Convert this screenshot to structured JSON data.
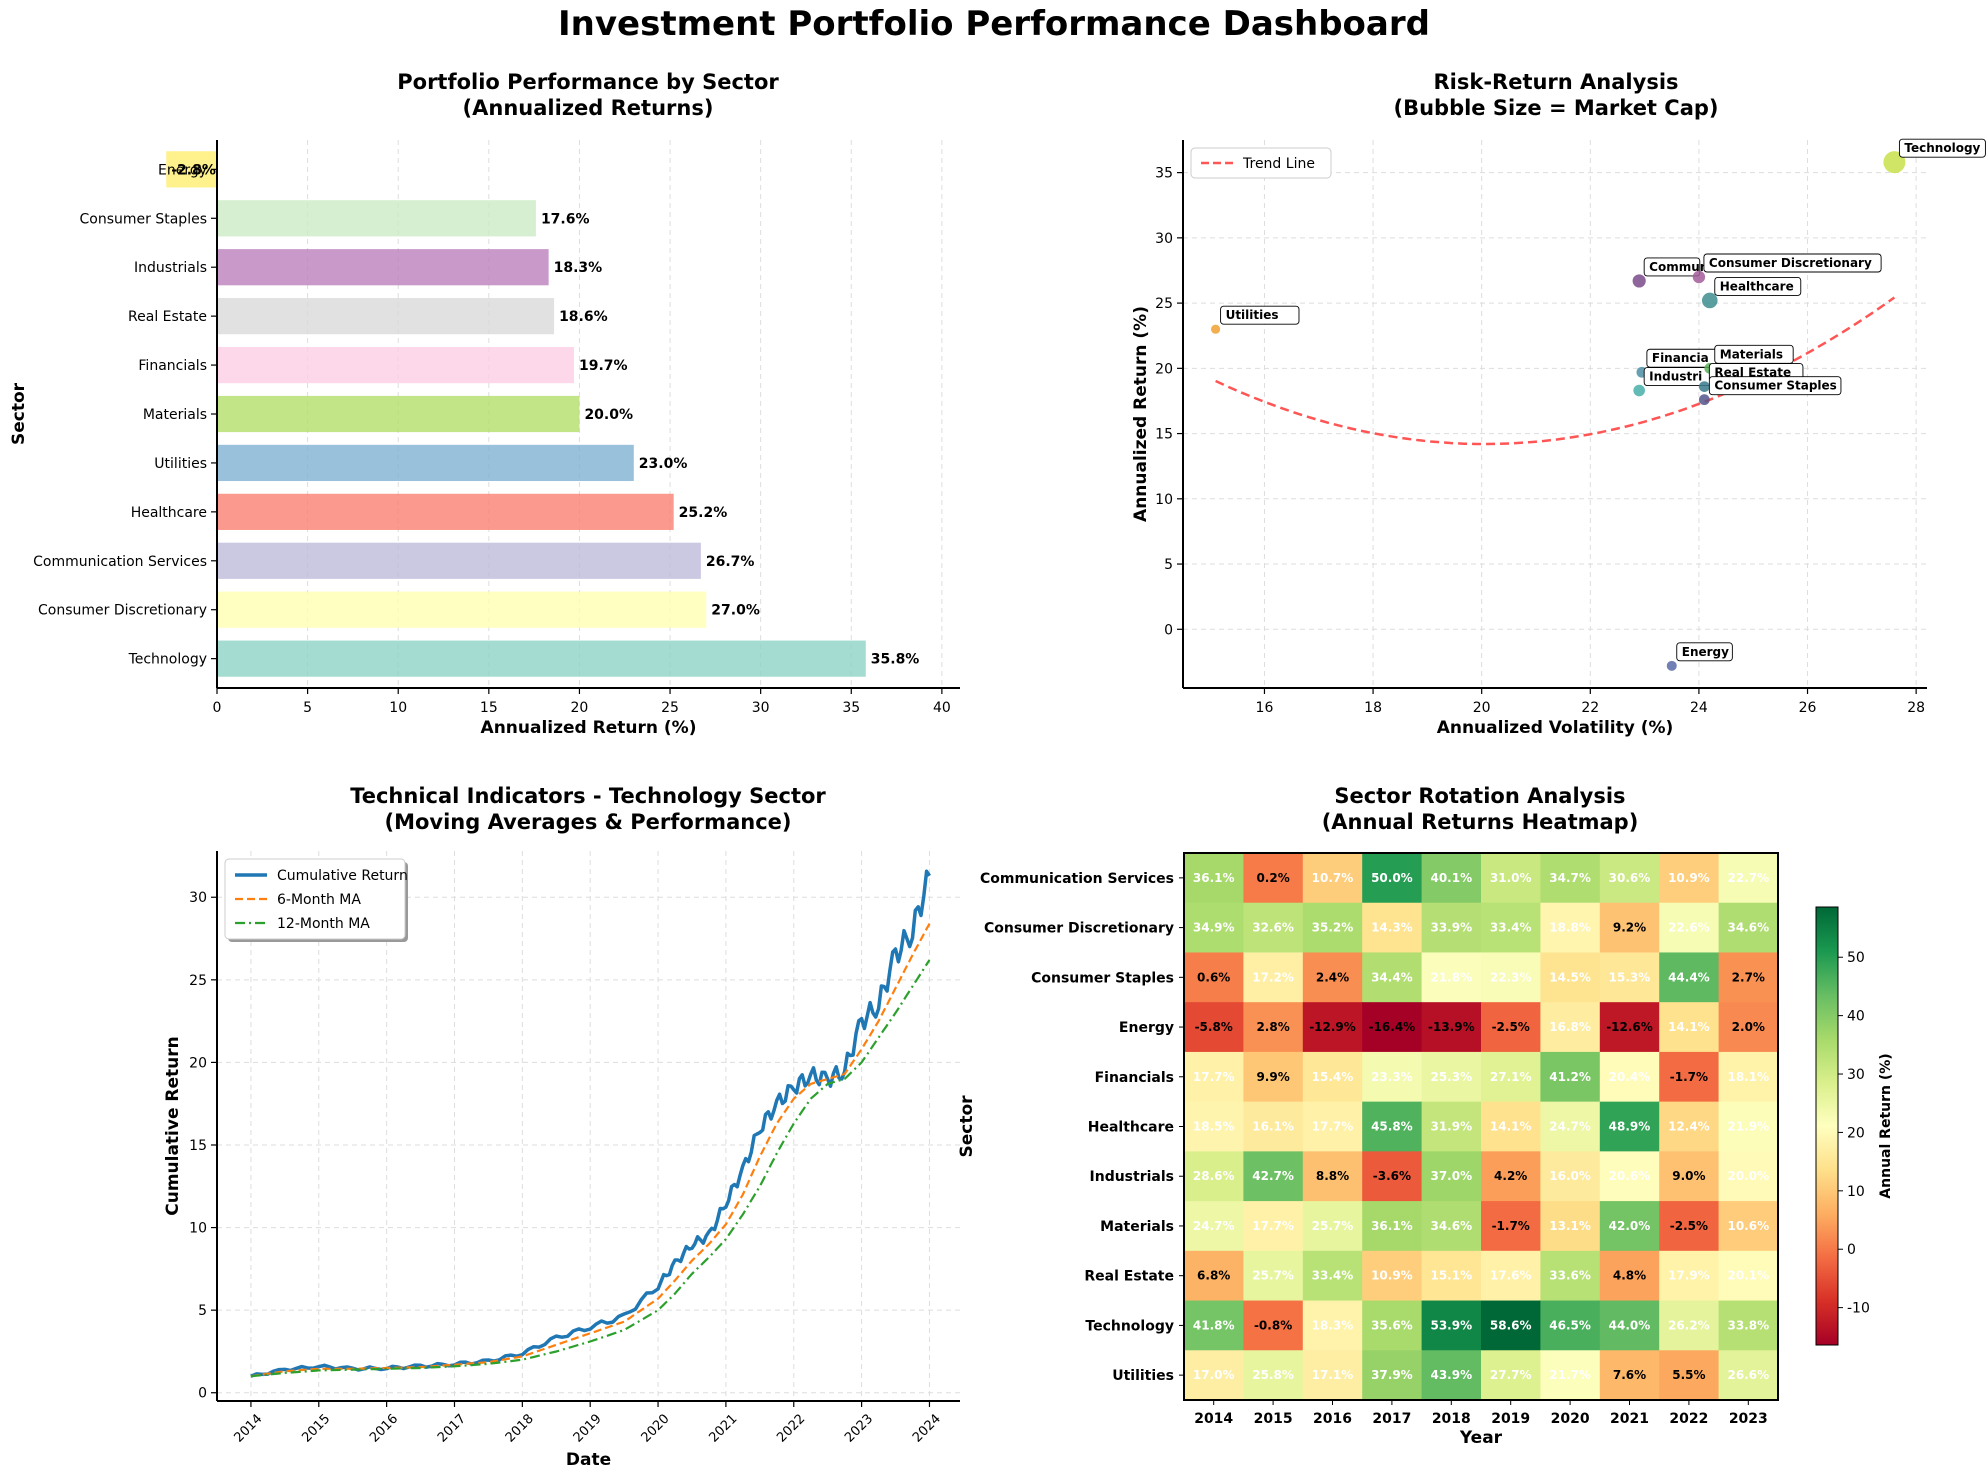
{
  "title": "Investment Portfolio Performance Dashboard",
  "chart_data": [
    {
      "type": "bar",
      "orientation": "horizontal",
      "title": "Portfolio Performance by Sector",
      "subtitle": "(Annualized Returns)",
      "xlabel": "Annualized Return (%)",
      "ylabel": "Sector",
      "xlim": [
        0,
        41
      ],
      "xticks": [
        0,
        5,
        10,
        15,
        20,
        25,
        30,
        35,
        40
      ],
      "grid": true,
      "categories": [
        "Technology",
        "Consumer Discretionary",
        "Communication Services",
        "Healthcare",
        "Utilities",
        "Materials",
        "Financials",
        "Real Estate",
        "Industrials",
        "Consumer Staples",
        "Energy"
      ],
      "values": [
        35.8,
        27.0,
        26.7,
        25.2,
        23.0,
        20.0,
        19.7,
        18.6,
        18.3,
        17.6,
        -2.8
      ],
      "value_labels": [
        "35.8%",
        "27.0%",
        "26.7%",
        "25.2%",
        "23.0%",
        "20.0%",
        "19.7%",
        "18.6%",
        "18.3%",
        "17.6%",
        "-2.8%"
      ],
      "colors": [
        "#8dd3c7",
        "#ffffb3",
        "#bebada",
        "#fb8072",
        "#80b1d3",
        "#b3de69",
        "#fccde5",
        "#d9d9d9",
        "#bc80bd",
        "#ccebc5",
        "#ffed6f"
      ]
    },
    {
      "type": "scatter",
      "title": "Risk-Return Analysis",
      "subtitle": "(Bubble Size = Market Cap)",
      "xlabel": "Annualized Volatility (%)",
      "ylabel": "Annualized Return (%)",
      "xlim": [
        14.5,
        28.2
      ],
      "ylim": [
        -4.5,
        37.5
      ],
      "xticks": [
        16,
        18,
        20,
        22,
        24,
        26,
        28
      ],
      "yticks": [
        0,
        5,
        10,
        15,
        20,
        25,
        30,
        35
      ],
      "grid": true,
      "legend": {
        "position": "top-left",
        "entries": [
          "Trend Line"
        ]
      },
      "points": [
        {
          "name": "Technology",
          "x": 27.6,
          "y": 35.8,
          "size": 1.0,
          "color": "#c8e04a"
        },
        {
          "name": "Communication Services",
          "label": "Commun",
          "x": 22.9,
          "y": 26.7,
          "size": 0.45,
          "color": "#7a4b8a"
        },
        {
          "name": "Consumer Discretionary",
          "x": 24.0,
          "y": 27.0,
          "size": 0.4,
          "color": "#a35c9a"
        },
        {
          "name": "Healthcare",
          "x": 24.2,
          "y": 25.2,
          "size": 0.6,
          "color": "#3d8d8f"
        },
        {
          "name": "Utilities",
          "x": 15.1,
          "y": 23.0,
          "size": 0.2,
          "color": "#f0a030"
        },
        {
          "name": "Financials",
          "label": "Financia",
          "x": 22.95,
          "y": 19.7,
          "size": 0.3,
          "color": "#4c8fa6"
        },
        {
          "name": "Industrials",
          "label": "Industri",
          "x": 22.9,
          "y": 18.3,
          "size": 0.35,
          "color": "#47b0a8"
        },
        {
          "name": "Materials",
          "x": 24.2,
          "y": 20.0,
          "size": 0.3,
          "color": "#5bb05a"
        },
        {
          "name": "Real Estate",
          "x": 24.1,
          "y": 18.6,
          "size": 0.3,
          "color": "#3a7a8c"
        },
        {
          "name": "Consumer Staples",
          "x": 24.1,
          "y": 17.6,
          "size": 0.3,
          "color": "#55558c"
        },
        {
          "name": "Energy",
          "x": 23.5,
          "y": -2.8,
          "size": 0.25,
          "color": "#5a6aa8"
        }
      ],
      "trend": {
        "type": "quadratic",
        "a": 0.197,
        "b": -7.9,
        "c": 93.4,
        "x_range": [
          15.1,
          27.6
        ],
        "color": "#ff5555"
      }
    },
    {
      "type": "line",
      "title": "Technical Indicators - Technology Sector",
      "subtitle": "(Moving Averages & Performance)",
      "xlabel": "Date",
      "ylabel": "Cumulative Return",
      "xlim": [
        2013.5,
        2024.45
      ],
      "ylim": [
        -0.5,
        32.8
      ],
      "xticks": [
        "2014",
        "2015",
        "2016",
        "2017",
        "2018",
        "2019",
        "2020",
        "2021",
        "2022",
        "2023",
        "2024"
      ],
      "yticks": [
        0,
        5,
        10,
        15,
        20,
        25,
        30
      ],
      "grid": true,
      "legend": {
        "position": "top-left",
        "entries": [
          "Cumulative Return",
          "6-Month MA",
          "12-Month MA"
        ]
      },
      "x_anchor_dates": [
        2014.0,
        2014.5,
        2015.0,
        2015.5,
        2016.0,
        2016.5,
        2017.0,
        2017.5,
        2018.0,
        2018.5,
        2019.0,
        2019.5,
        2020.0,
        2020.25,
        2020.5,
        2020.75,
        2021.0,
        2021.25,
        2021.5,
        2021.75,
        2022.0,
        2022.25,
        2022.5,
        2022.75,
        2023.0,
        2023.25,
        2023.5,
        2023.75,
        2024.0
      ],
      "series": [
        {
          "name": "Cumulative Return",
          "color": "#1f77b4",
          "values": [
            1.0,
            1.4,
            1.6,
            1.45,
            1.5,
            1.6,
            1.75,
            1.9,
            2.4,
            3.3,
            4.0,
            4.6,
            6.5,
            7.8,
            9.0,
            9.5,
            11.5,
            13.5,
            16.0,
            17.5,
            18.5,
            19.2,
            19.0,
            19.5,
            22.5,
            23.5,
            26.5,
            28.0,
            31.3
          ]
        },
        {
          "name": "6-Month MA",
          "color": "#ff7f0e",
          "values": [
            1.0,
            1.3,
            1.45,
            1.45,
            1.5,
            1.55,
            1.7,
            1.85,
            2.2,
            2.9,
            3.6,
            4.3,
            5.7,
            6.8,
            8.0,
            9.0,
            10.2,
            12.0,
            14.3,
            16.3,
            17.8,
            18.7,
            19.0,
            19.3,
            20.8,
            22.5,
            24.5,
            26.5,
            28.4
          ]
        },
        {
          "name": "12-Month MA",
          "color": "#2ca02c",
          "values": [
            1.0,
            1.2,
            1.35,
            1.4,
            1.45,
            1.5,
            1.6,
            1.75,
            2.0,
            2.5,
            3.1,
            3.8,
            5.0,
            6.0,
            7.2,
            8.2,
            9.3,
            10.8,
            12.5,
            14.5,
            16.3,
            17.8,
            18.7,
            19.0,
            20.0,
            21.5,
            23.0,
            24.6,
            26.2
          ]
        }
      ]
    },
    {
      "type": "heatmap",
      "title": "Sector Rotation Analysis",
      "subtitle": "(Annual Returns Heatmap)",
      "xlabel": "Year",
      "ylabel": "Sector",
      "colorbar_label": "Annual Return (%)",
      "colorbar_ticks": [
        -10,
        0,
        10,
        20,
        30,
        40,
        50
      ],
      "vmin": -16.4,
      "vmax": 58.6,
      "colormap": "RdYlGn",
      "x": [
        "2014",
        "2015",
        "2016",
        "2017",
        "2018",
        "2019",
        "2020",
        "2021",
        "2022",
        "2023"
      ],
      "y": [
        "Communication Services",
        "Consumer Discretionary",
        "Consumer Staples",
        "Energy",
        "Financials",
        "Healthcare",
        "Industrials",
        "Materials",
        "Real Estate",
        "Technology",
        "Utilities"
      ],
      "values": [
        [
          36.1,
          0.2,
          10.7,
          50.0,
          40.1,
          31.0,
          34.7,
          30.6,
          10.9,
          22.7
        ],
        [
          34.9,
          32.6,
          35.2,
          14.3,
          33.9,
          33.4,
          18.8,
          9.2,
          22.6,
          34.6
        ],
        [
          0.6,
          17.2,
          2.4,
          34.4,
          21.8,
          22.3,
          14.5,
          15.3,
          44.4,
          2.7
        ],
        [
          -5.8,
          2.8,
          -12.9,
          -16.4,
          -13.9,
          -2.5,
          16.8,
          -12.6,
          14.1,
          2.0
        ],
        [
          17.7,
          9.9,
          15.4,
          23.3,
          25.3,
          27.1,
          41.2,
          20.4,
          -1.7,
          18.1
        ],
        [
          18.5,
          16.1,
          17.7,
          45.8,
          31.9,
          14.1,
          24.7,
          48.9,
          12.4,
          21.9
        ],
        [
          28.6,
          42.7,
          8.8,
          -3.6,
          37.0,
          4.2,
          16.0,
          20.6,
          9.0,
          20.0
        ],
        [
          24.7,
          17.7,
          25.7,
          36.1,
          34.6,
          -1.7,
          13.1,
          42.0,
          -2.5,
          10.6
        ],
        [
          6.8,
          25.7,
          33.4,
          10.9,
          15.1,
          17.6,
          33.6,
          4.8,
          17.9,
          20.1
        ],
        [
          41.8,
          -0.8,
          18.3,
          35.6,
          53.9,
          58.6,
          46.5,
          44.0,
          26.2,
          33.8
        ],
        [
          17.0,
          25.8,
          17.1,
          37.9,
          43.9,
          27.7,
          21.7,
          7.6,
          5.5,
          26.6
        ]
      ]
    }
  ]
}
